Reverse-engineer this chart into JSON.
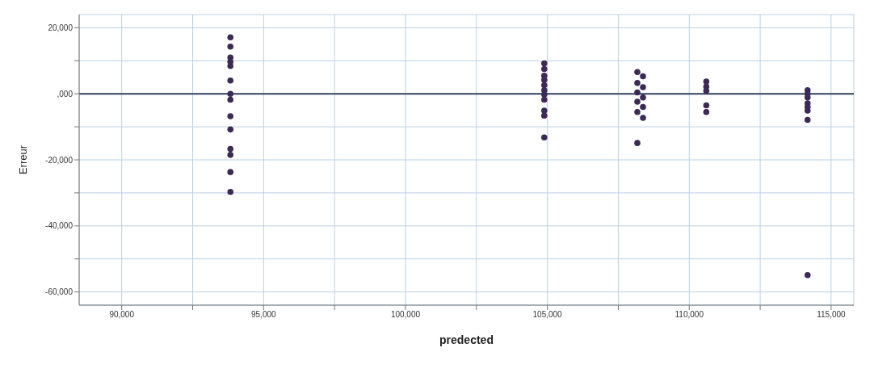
{
  "chart_data": {
    "type": "scatter",
    "xlabel": "predected",
    "ylabel": "Erreur",
    "marker": "circle",
    "grid": true,
    "xlim": [
      88500,
      115800
    ],
    "ylim": [
      -64000,
      24000
    ],
    "xticks": [
      {
        "value": 90000,
        "label": "90,000"
      },
      {
        "value": 92500,
        "label": null
      },
      {
        "value": 95000,
        "label": "95,000"
      },
      {
        "value": 97500,
        "label": null
      },
      {
        "value": 100000,
        "label": "100,000"
      },
      {
        "value": 102500,
        "label": null
      },
      {
        "value": 105000,
        "label": "105,000"
      },
      {
        "value": 107500,
        "label": null
      },
      {
        "value": 110000,
        "label": "110,000"
      },
      {
        "value": 112500,
        "label": null
      },
      {
        "value": 115000,
        "label": "115,000"
      }
    ],
    "yticks": [
      {
        "value": -60000,
        "label": "-60,000"
      },
      {
        "value": -50000,
        "label": null
      },
      {
        "value": -40000,
        "label": "-40,000"
      },
      {
        "value": -30000,
        "label": null
      },
      {
        "value": -20000,
        "label": "-20,000"
      },
      {
        "value": -10000,
        "label": null
      },
      {
        "value": 0,
        "label": ",000"
      },
      {
        "value": 10000,
        "label": null
      },
      {
        "value": 20000,
        "label": "20,000"
      }
    ],
    "ref_lines": [
      {
        "axis": "y",
        "value": 0,
        "label": null,
        "color": "#34445e"
      }
    ],
    "series": [
      {
        "color": "#3b2a55",
        "x": [
          93830,
          93830,
          93830,
          93830,
          93830,
          93830,
          93830,
          93830,
          93830,
          93830,
          93830,
          93830,
          93830,
          93830,
          104890,
          104890,
          104890,
          104890,
          104890,
          104890,
          104890,
          104890,
          104890,
          104890,
          104890,
          108170,
          108370,
          108170,
          108370,
          108170,
          108370,
          108170,
          108370,
          108170,
          108370,
          108170,
          110600,
          110600,
          110600,
          110600,
          110600,
          114170,
          114170,
          114170,
          114170,
          114170,
          114170,
          114170,
          114170
        ],
        "values": [
          17100,
          14300,
          11000,
          9700,
          8400,
          4000,
          0,
          -1800,
          -6800,
          -10800,
          -16700,
          -18500,
          -23700,
          -29700,
          9200,
          7500,
          5500,
          4200,
          2600,
          1100,
          -200,
          -1800,
          -5100,
          -6600,
          -13200,
          6600,
          5300,
          3300,
          2000,
          400,
          -1100,
          -2400,
          -4000,
          -5500,
          -7300,
          -14900,
          3700,
          2200,
          900,
          -3500,
          -5500,
          1100,
          0,
          -1100,
          -2900,
          -4000,
          -5100,
          -7900,
          -54900
        ]
      }
    ]
  }
}
